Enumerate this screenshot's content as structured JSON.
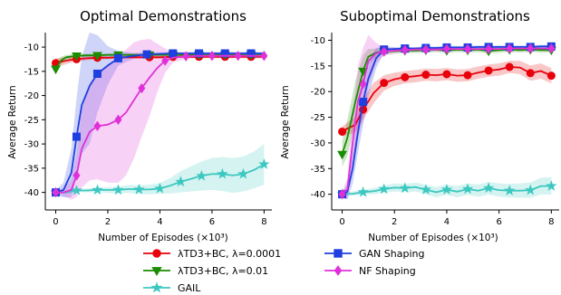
{
  "chart_data": [
    {
      "type": "line",
      "title": "Optimal Demonstrations",
      "xlabel": "Number of Episodes (×10³)",
      "ylabel": "Average Return",
      "xlim": [
        -0.4,
        8.3
      ],
      "ylim": [
        -42.5,
        -7
      ],
      "xticks": [
        "0",
        "2",
        "4",
        "6",
        "8"
      ],
      "yticks": [
        "-10",
        "-15",
        "-20",
        "-25",
        "-30",
        "-35",
        "-40"
      ],
      "series": [
        {
          "name": "λTD3+BC, λ=0.0001",
          "color": "#e8000b",
          "marker": "circle",
          "x": [
            0,
            0.3,
            0.6,
            0.8,
            1.2,
            1.6,
            2,
            2.4,
            3,
            3.6,
            4,
            4.5,
            5,
            5.5,
            6,
            6.5,
            7,
            7.5,
            8
          ],
          "y": [
            -13.3,
            -12.9,
            -12.6,
            -12.5,
            -12.3,
            -12.2,
            -12.2,
            -12.1,
            -12.1,
            -12.1,
            -12.1,
            -12,
            -12,
            -12,
            -12,
            -12,
            -12,
            -12,
            -12
          ],
          "band": [
            1.0,
            0.8,
            0.6,
            0.5,
            0.4,
            0.4,
            0.3,
            0.3,
            0.3,
            0.3,
            0.3,
            0.3,
            0.3,
            0.3,
            0.3,
            0.3,
            0.3,
            0.3,
            0.3
          ]
        },
        {
          "name": "λTD3+BC, λ=0.01",
          "color": "#1a8c00",
          "marker": "triangle-down",
          "x": [
            0,
            0.2,
            0.4,
            0.8,
            1.2,
            1.6,
            2,
            2.4,
            3,
            3.6,
            4,
            4.5,
            5,
            5.5,
            6,
            6.5,
            7,
            7.5,
            8
          ],
          "y": [
            -14.5,
            -12.8,
            -12.1,
            -11.8,
            -11.7,
            -11.7,
            -11.6,
            -11.6,
            -11.6,
            -11.6,
            -11.6,
            -11.6,
            -11.6,
            -11.6,
            -11.6,
            -11.6,
            -11.6,
            -11.6,
            -11.6
          ],
          "band": [
            1.2,
            0.8,
            0.5,
            0.4,
            0.3,
            0.3,
            0.3,
            0.3,
            0.3,
            0.3,
            0.3,
            0.3,
            0.3,
            0.3,
            0.3,
            0.3,
            0.3,
            0.3,
            0.3
          ]
        },
        {
          "name": "GAIL",
          "color": "#3cc8c0",
          "marker": "star",
          "x": [
            0,
            0.4,
            0.8,
            1.2,
            1.6,
            2,
            2.4,
            2.8,
            3.2,
            3.6,
            4,
            4.4,
            4.8,
            5.2,
            5.6,
            6,
            6.4,
            6.8,
            7.2,
            7.6,
            8
          ],
          "y": [
            -40,
            -40,
            -39.6,
            -39.6,
            -39.5,
            -39.5,
            -39.5,
            -39.3,
            -39.4,
            -39.4,
            -39.2,
            -38.6,
            -37.8,
            -37.2,
            -36.6,
            -36.2,
            -36.2,
            -36.5,
            -36.2,
            -35.4,
            -34.2
          ],
          "band": [
            0.2,
            0.3,
            0.3,
            0.4,
            0.5,
            0.6,
            0.7,
            0.8,
            0.9,
            1.0,
            1.1,
            1.6,
            2.2,
            2.6,
            3.0,
            3.3,
            3.5,
            3.6,
            3.6,
            3.8,
            4.2
          ]
        },
        {
          "name": "GAN Shaping",
          "color": "#1f3fe0",
          "marker": "square",
          "x": [
            0,
            0.3,
            0.6,
            0.8,
            1.0,
            1.3,
            1.6,
            2.0,
            2.4,
            3,
            3.5,
            4,
            4.5,
            5,
            5.5,
            6,
            6.5,
            7,
            7.5,
            8
          ],
          "y": [
            -40,
            -39.5,
            -36,
            -28.5,
            -22,
            -18,
            -15.5,
            -13.8,
            -12.3,
            -11.8,
            -11.5,
            -11.4,
            -11.3,
            -11.3,
            -11.3,
            -11.3,
            -11.3,
            -11.3,
            -11.3,
            -11.3
          ],
          "band": [
            0.5,
            1.5,
            5.0,
            8.0,
            10.0,
            12.0,
            8.0,
            4.0,
            1.5,
            0.6,
            0.4,
            0.3,
            0.3,
            0.3,
            0.3,
            0.3,
            0.3,
            0.3,
            0.3,
            0.3
          ]
        },
        {
          "name": "NF Shaping",
          "color": "#e030d8",
          "marker": "diamond",
          "x": [
            0,
            0.3,
            0.6,
            0.8,
            1.0,
            1.3,
            1.6,
            2.0,
            2.4,
            2.7,
            3.0,
            3.3,
            3.6,
            3.9,
            4.2,
            4.5,
            5,
            5.5,
            6,
            6.5,
            7,
            7.5,
            8
          ],
          "y": [
            -40,
            -40,
            -39.5,
            -36.5,
            -31,
            -27.5,
            -26.3,
            -26,
            -25,
            -23.5,
            -21,
            -18.5,
            -16.3,
            -14.3,
            -12.8,
            -12.2,
            -11.9,
            -11.8,
            -11.8,
            -11.8,
            -11.8,
            -11.8,
            -11.8
          ],
          "band": [
            0.3,
            0.8,
            2.0,
            4.5,
            8.0,
            10.0,
            11.0,
            12.0,
            13.0,
            13.0,
            12.0,
            10.0,
            8.0,
            5.0,
            2.5,
            1.0,
            0.5,
            0.4,
            0.3,
            0.3,
            0.3,
            0.3,
            0.3
          ]
        }
      ]
    },
    {
      "type": "line",
      "title": "Suboptimal Demonstrations",
      "xlabel": "Number of Episodes (×10³)",
      "ylabel": "Average Return",
      "xlim": [
        -0.4,
        8.3
      ],
      "ylim": [
        -42,
        -8.5
      ],
      "xticks": [
        "0",
        "2",
        "4",
        "6",
        "8"
      ],
      "yticks": [
        "-10",
        "-15",
        "-20",
        "-25",
        "-30",
        "-35",
        "-40"
      ],
      "series": [
        {
          "name": "λTD3+BC, λ=0.0001",
          "color": "#e8000b",
          "marker": "circle",
          "x": [
            0,
            0.2,
            0.5,
            0.8,
            1.2,
            1.6,
            2.0,
            2.4,
            2.8,
            3.2,
            3.6,
            4.0,
            4.4,
            4.8,
            5.2,
            5.6,
            6.0,
            6.4,
            6.8,
            7.2,
            7.6,
            8.0
          ],
          "y": [
            -27.8,
            -27.2,
            -26.5,
            -23.5,
            -20.3,
            -18.3,
            -17.6,
            -17.2,
            -17.0,
            -16.7,
            -16.8,
            -16.6,
            -16.9,
            -16.8,
            -16.3,
            -15.9,
            -15.7,
            -15.2,
            -15.3,
            -16.4,
            -16.0,
            -16.9
          ],
          "band": [
            1.0,
            1.2,
            1.5,
            2.0,
            2.0,
            1.5,
            1.3,
            1.2,
            1.2,
            1.2,
            1.2,
            1.2,
            1.2,
            1.2,
            1.2,
            1.2,
            1.2,
            1.2,
            1.3,
            1.5,
            1.5,
            1.5
          ]
        },
        {
          "name": "λTD3+BC, λ=0.01",
          "color": "#1a8c00",
          "marker": "triangle-down",
          "x": [
            0,
            0.2,
            0.5,
            0.8,
            1.0,
            1.3,
            1.6,
            2.0,
            2.4,
            2.8,
            3.2,
            3.6,
            4.0,
            4.4,
            4.8,
            5.2,
            5.6,
            6.0,
            6.4,
            6.8,
            7.2,
            7.6,
            8.0
          ],
          "y": [
            -32.2,
            -29,
            -22,
            -16,
            -13.2,
            -12.4,
            -12.2,
            -12.1,
            -12.0,
            -12.0,
            -11.9,
            -11.8,
            -12.0,
            -11.8,
            -11.9,
            -11.8,
            -12.1,
            -11.9,
            -11.8,
            -11.9,
            -11.8,
            -11.9,
            -11.9
          ],
          "band": [
            2.5,
            3.5,
            4.0,
            3.0,
            1.5,
            0.8,
            0.6,
            0.5,
            0.5,
            0.5,
            0.5,
            0.5,
            0.5,
            0.5,
            0.5,
            0.5,
            0.5,
            0.5,
            0.5,
            0.5,
            0.5,
            0.5,
            0.5
          ]
        },
        {
          "name": "GAIL",
          "color": "#3cc8c0",
          "marker": "star",
          "x": [
            0,
            0.4,
            0.8,
            1.2,
            1.6,
            2.0,
            2.4,
            2.8,
            3.2,
            3.6,
            4.0,
            4.4,
            4.8,
            5.2,
            5.6,
            6.0,
            6.4,
            6.8,
            7.2,
            7.6,
            8.0
          ],
          "y": [
            -40,
            -39.9,
            -39.6,
            -39.4,
            -39.0,
            -38.7,
            -38.8,
            -38.6,
            -39.1,
            -39.6,
            -39.1,
            -39.5,
            -39.0,
            -39.3,
            -38.8,
            -39.2,
            -39.3,
            -39.3,
            -39.2,
            -38.4,
            -38.4
          ],
          "band": [
            0.3,
            0.4,
            0.5,
            0.6,
            0.7,
            0.8,
            0.8,
            0.9,
            0.9,
            1.0,
            1.0,
            1.1,
            1.1,
            1.2,
            1.2,
            1.3,
            1.3,
            1.4,
            1.5,
            1.6,
            1.7
          ]
        },
        {
          "name": "GAN Shaping",
          "color": "#1f3fe0",
          "marker": "square",
          "x": [
            0,
            0.2,
            0.4,
            0.6,
            0.8,
            1.0,
            1.3,
            1.6,
            2.0,
            2.4,
            2.8,
            3.2,
            3.6,
            4.0,
            4.4,
            4.8,
            5.2,
            5.6,
            6.0,
            6.4,
            6.8,
            7.2,
            7.6,
            8.0
          ],
          "y": [
            -40,
            -39.5,
            -35,
            -28,
            -22,
            -17.5,
            -13.5,
            -11.8,
            -11.7,
            -11.6,
            -11.6,
            -11.5,
            -11.5,
            -11.4,
            -11.4,
            -11.4,
            -11.3,
            -11.3,
            -11.3,
            -11.3,
            -11.3,
            -11.3,
            -11.2,
            -11.2
          ],
          "band": [
            0.5,
            1.5,
            3.0,
            4.0,
            4.5,
            3.5,
            2.0,
            0.6,
            0.4,
            0.3,
            0.3,
            0.3,
            0.3,
            0.3,
            0.3,
            0.3,
            0.3,
            0.3,
            0.3,
            0.3,
            0.3,
            0.3,
            0.3,
            0.3
          ]
        },
        {
          "name": "NF Shaping",
          "color": "#e030d8",
          "marker": "diamond",
          "x": [
            0,
            0.2,
            0.4,
            0.6,
            0.8,
            1.0,
            1.3,
            1.6,
            2.0,
            2.4,
            2.8,
            3.2,
            3.6,
            4.0,
            4.4,
            4.8,
            5.2,
            5.6,
            6.0,
            6.4,
            6.8,
            7.2,
            7.6,
            8.0
          ],
          "y": [
            -40,
            -39,
            -30,
            -22,
            -18.5,
            -14,
            -12.5,
            -12.2,
            -12.0,
            -11.9,
            -11.8,
            -11.8,
            -11.8,
            -11.7,
            -11.7,
            -11.7,
            -11.7,
            -11.7,
            -11.7,
            -11.6,
            -11.6,
            -11.6,
            -11.6,
            -11.6
          ],
          "band": [
            0.5,
            2.0,
            5.0,
            7.0,
            7.0,
            5.0,
            2.0,
            0.8,
            0.5,
            0.4,
            0.4,
            0.4,
            0.4,
            0.4,
            0.4,
            0.4,
            0.4,
            0.4,
            0.4,
            0.4,
            0.4,
            0.4,
            0.4,
            0.4
          ]
        }
      ]
    }
  ],
  "legend": {
    "placement": "bottom",
    "entries": [
      {
        "label": "λTD3+BC, λ=0.0001",
        "color": "#e8000b",
        "marker": "circle"
      },
      {
        "label": "λTD3+BC, λ=0.01",
        "color": "#1a8c00",
        "marker": "triangle-down"
      },
      {
        "label": "GAIL",
        "color": "#3cc8c0",
        "marker": "star"
      },
      {
        "label": "GAN Shaping",
        "color": "#1f3fe0",
        "marker": "square"
      },
      {
        "label": "NF Shaping",
        "color": "#e030d8",
        "marker": "diamond"
      }
    ]
  }
}
